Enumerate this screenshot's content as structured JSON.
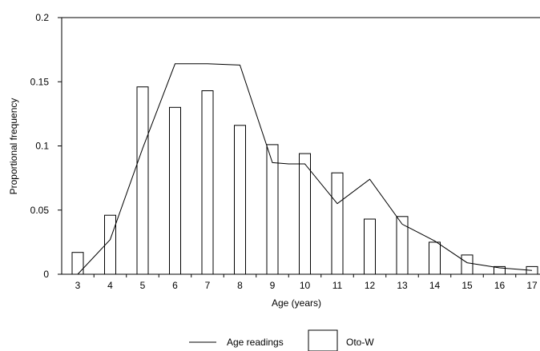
{
  "chart_data": {
    "type": "bar",
    "title": "",
    "xlabel": "Age (years)",
    "ylabel": "Proportional frequency",
    "ylim": [
      0,
      0.2
    ],
    "yticks": [
      "0",
      "0.05",
      "0.1",
      "0.15",
      "0.2"
    ],
    "categories": [
      "3",
      "4",
      "5",
      "6",
      "7",
      "8",
      "9",
      "10",
      "11",
      "12",
      "13",
      "14",
      "15",
      "16",
      "17"
    ],
    "grid": false,
    "legend_position": "bottom-center",
    "series": [
      {
        "name": "Oto-W",
        "type": "bar",
        "values": [
          0.017,
          0.046,
          0.146,
          0.13,
          0.143,
          0.116,
          0.101,
          0.094,
          0.079,
          0.043,
          0.045,
          0.025,
          0.015,
          0.006,
          0.006
        ]
      },
      {
        "name": "Age readings",
        "type": "line",
        "x": [
          3,
          4,
          5,
          6,
          7,
          8,
          9,
          9.5,
          10,
          11,
          12,
          13,
          14,
          15,
          16,
          17
        ],
        "values": [
          0.0,
          0.027,
          0.098,
          0.164,
          0.164,
          0.163,
          0.087,
          0.086,
          0.086,
          0.055,
          0.074,
          0.039,
          0.026,
          0.009,
          0.005,
          0.003
        ]
      }
    ]
  }
}
